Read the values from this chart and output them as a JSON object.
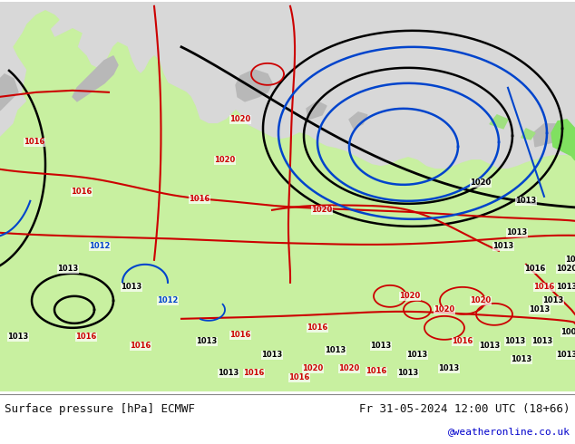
{
  "title_left": "Surface pressure [hPa] ECMWF",
  "title_right": "Fr 31-05-2024 12:00 UTC (18+66)",
  "watermark": "@weatheronline.co.uk",
  "watermark_color": "#0000cc",
  "land_color": "#c8f0a0",
  "sea_color": "#e0e0e0",
  "mountain_color": "#b0b0b0",
  "text_color": "#111111",
  "footer_bg": "#ffffff",
  "figsize": [
    6.34,
    4.9
  ],
  "dpi": 100
}
